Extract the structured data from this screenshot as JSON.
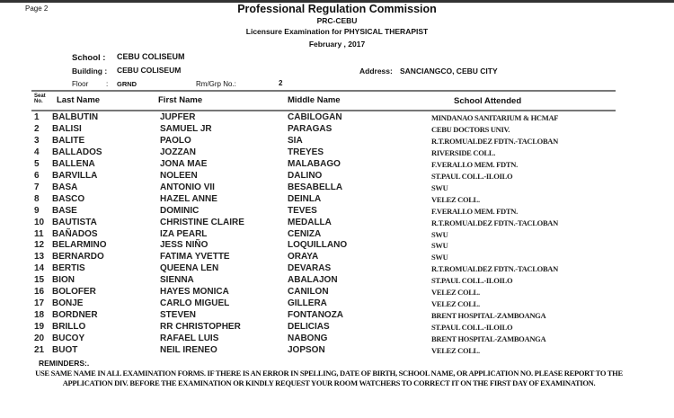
{
  "page_label": "Page 2",
  "header": {
    "title": "Professional Regulation Commission",
    "office": "PRC-CEBU",
    "exam": "Licensure Examination for  PHYSICAL THERAPIST",
    "date": "February  , 2017"
  },
  "info": {
    "school_label": "School :",
    "school": "CEBU COLISEUM",
    "building_label": "Building :",
    "building": "CEBU COLISEUM",
    "address_label": "Address:",
    "address": "SANCIANGCO, CEBU CITY",
    "floor_label": "Floor",
    "floor_sep": ":",
    "floor": "GRND",
    "room_label": "Rm/Grp No.:",
    "room": "2"
  },
  "columns": {
    "seat_top": "Seat",
    "seat_bottom": "No.",
    "last": "Last Name",
    "first": "First Name",
    "middle": "Middle Name",
    "school": "School  Attended"
  },
  "rows": [
    [
      "1",
      "BALBUTIN",
      "JUPFER",
      "CABILOGAN",
      "MINDANAO SANITARIUM & HCMAF"
    ],
    [
      "2",
      "BALISI",
      "SAMUEL JR",
      "PARAGAS",
      "CEBU DOCTORS UNIV."
    ],
    [
      "3",
      "BALITE",
      "PAOLO",
      "SIA",
      "R.T.ROMUALDEZ FDTN.-TACLOBAN"
    ],
    [
      "4",
      "BALLADOS",
      "JOZZAN",
      "TREYES",
      "RIVERSIDE COLL."
    ],
    [
      "5",
      "BALLENA",
      "JONA MAE",
      "MALABAGO",
      "F.VERALLO MEM. FDTN."
    ],
    [
      "6",
      "BARVILLA",
      "NOLEEN",
      "DALINO",
      "ST.PAUL COLL.-ILOILO"
    ],
    [
      "7",
      "BASA",
      "ANTONIO VII",
      "BESABELLA",
      "SWU"
    ],
    [
      "8",
      "BASCO",
      "HAZEL ANNE",
      "DEINLA",
      "VELEZ COLL."
    ],
    [
      "9",
      "BASE",
      "DOMINIC",
      "TEVES",
      "F.VERALLO MEM. FDTN."
    ],
    [
      "10",
      "BAUTISTA",
      "CHRISTINE CLAIRE",
      "MEDALLA",
      "R.T.ROMUALDEZ FDTN.-TACLOBAN"
    ],
    [
      "11",
      "BAÑADOS",
      "IZA PEARL",
      "CENIZA",
      "SWU"
    ],
    [
      "12",
      "BELARMINO",
      "JESS NIÑO",
      "LOQUILLANO",
      "SWU"
    ],
    [
      "13",
      "BERNARDO",
      "FATIMA YVETTE",
      "ORAYA",
      "SWU"
    ],
    [
      "14",
      "BERTIS",
      "QUEENA LEN",
      "DEVARAS",
      "R.T.ROMUALDEZ FDTN.-TACLOBAN"
    ],
    [
      "15",
      "BION",
      "SIENNA",
      "ABALAJON",
      "ST.PAUL COLL.-ILOILO"
    ],
    [
      "16",
      "BOLOFER",
      "HAYES MONICA",
      "CANILON",
      "VELEZ COLL."
    ],
    [
      "17",
      "BONJE",
      "CARLO MIGUEL",
      "GILLERA",
      "VELEZ COLL."
    ],
    [
      "18",
      "BORDNER",
      "STEVEN",
      "FONTANOZA",
      "BRENT HOSPITAL-ZAMBOANGA"
    ],
    [
      "19",
      "BRILLO",
      "RR CHRISTOPHER",
      "DELICIAS",
      "ST.PAUL COLL.-ILOILO"
    ],
    [
      "20",
      "BUCOY",
      "RAFAEL LUIS",
      "NABONG",
      "BRENT HOSPITAL-ZAMBOANGA"
    ],
    [
      "21",
      "BUOT",
      "NEIL IRENEO",
      "JOPSON",
      "VELEZ COLL."
    ]
  ],
  "reminders": {
    "label": "REMINDERS:.",
    "line1": "USE  SAME NAME IN ALL EXAMINATION FORMS.  IF THERE IS AN ERROR IN SPELLING, DATE OF BIRTH, SCHOOL NAME,  OR APPLICATION NO. PLEASE REPORT  TO THE",
    "line2": "APPLICATION DIV. BEFORE THE EXAMINATION OR KINDLY REQUEST YOUR  ROOM WATCHERS TO CORRECT IT ON THE FIRST DAY OF EXAMINATION."
  }
}
